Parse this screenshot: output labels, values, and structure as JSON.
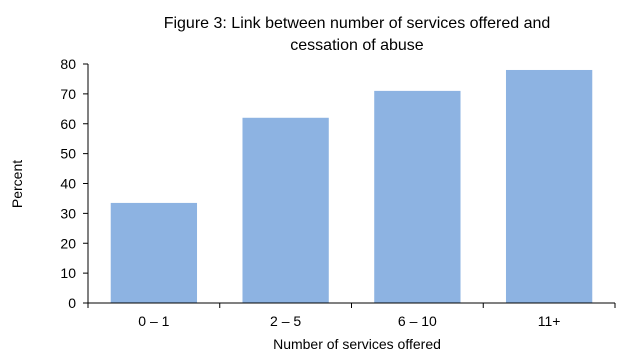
{
  "chart_data": {
    "type": "bar",
    "title_lines": [
      "Figure 3: Link between number of services offered and",
      "cessation of abuse"
    ],
    "xlabel": "Number of services offered",
    "ylabel": "Percent",
    "categories": [
      "0 – 1",
      "2 – 5",
      "6 – 10",
      "11+"
    ],
    "values": [
      33.5,
      62,
      71,
      78
    ],
    "ylim": [
      0,
      80
    ],
    "yticks": [
      "0",
      "10",
      "20",
      "30",
      "40",
      "50",
      "60",
      "70",
      "80"
    ],
    "bar_color": "#8DB3E2",
    "grid": false,
    "legend": "none"
  }
}
